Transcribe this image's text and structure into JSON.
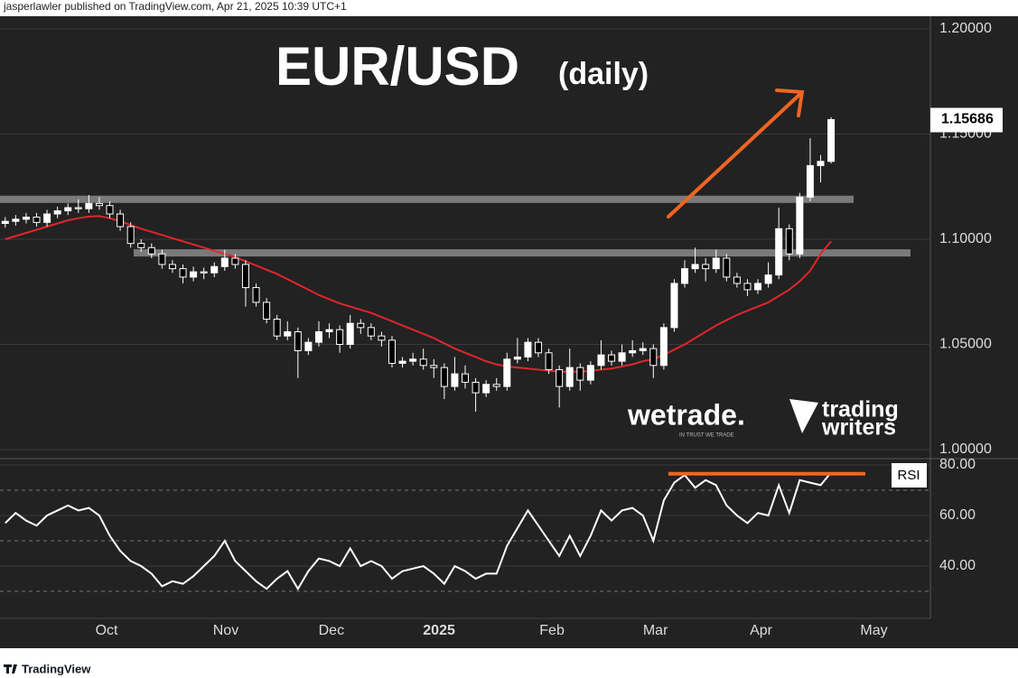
{
  "header": {
    "publisher": "jasperlawler published on TradingView.com, Apr 21, 2025 10:39 UTC+1"
  },
  "logos": {
    "wetrade": "wetrade.",
    "wetrade_tagline": "IN TRUST WE TRADE",
    "tw_line1": "trading",
    "tw_line2": "writers"
  },
  "footer": {
    "brand": "TradingView"
  },
  "chart_data": [
    {
      "type": "candlestick",
      "title": "EUR/USD",
      "subtitle": "(daily)",
      "open": [
        1.1075,
        1.1085,
        1.1095,
        1.1105,
        1.108,
        1.112,
        1.1135,
        1.115,
        1.1145,
        1.117,
        1.116,
        1.112,
        1.106,
        1.098,
        1.096,
        1.093,
        1.088,
        1.086,
        1.082,
        1.0845,
        1.084,
        1.087,
        1.091,
        1.088,
        1.077,
        1.07,
        1.062,
        1.054,
        1.056,
        1.047,
        1.051,
        1.056,
        1.057,
        1.05,
        1.06,
        1.058,
        1.054,
        1.052,
        1.041,
        1.042,
        1.043,
        1.04,
        1.039,
        1.03,
        1.036,
        1.032,
        1.027,
        1.031,
        1.03,
        1.043,
        1.044,
        1.051,
        1.046,
        1.038,
        1.03,
        1.039,
        1.033,
        1.04,
        1.045,
        1.042,
        1.046,
        1.047,
        1.048,
        1.04,
        1.058,
        1.079,
        1.086,
        1.088,
        1.086,
        1.091,
        1.082,
        1.079,
        1.076,
        1.079,
        1.083,
        1.105,
        1.093,
        1.12,
        1.135,
        1.137
      ],
      "high": [
        1.1105,
        1.1115,
        1.1125,
        1.1125,
        1.114,
        1.1155,
        1.117,
        1.119,
        1.121,
        1.12,
        1.118,
        1.114,
        1.108,
        1.1,
        1.098,
        1.095,
        1.09,
        1.088,
        1.087,
        1.0865,
        1.089,
        1.095,
        1.093,
        1.09,
        1.079,
        1.072,
        1.064,
        1.061,
        1.058,
        1.053,
        1.061,
        1.06,
        1.059,
        1.064,
        1.062,
        1.06,
        1.056,
        1.054,
        1.044,
        1.046,
        1.048,
        1.043,
        1.041,
        1.044,
        1.04,
        1.034,
        1.033,
        1.034,
        1.046,
        1.053,
        1.053,
        1.053,
        1.048,
        1.04,
        1.048,
        1.041,
        1.042,
        1.052,
        1.047,
        1.05,
        1.052,
        1.051,
        1.05,
        1.06,
        1.081,
        1.09,
        1.096,
        1.091,
        1.095,
        1.093,
        1.084,
        1.081,
        1.081,
        1.089,
        1.115,
        1.107,
        1.122,
        1.148,
        1.14,
        1.158
      ],
      "low": [
        1.1055,
        1.1065,
        1.1075,
        1.106,
        1.106,
        1.11,
        1.1115,
        1.1125,
        1.1125,
        1.114,
        1.11,
        1.104,
        1.096,
        1.094,
        1.091,
        1.086,
        1.084,
        1.079,
        1.08,
        1.081,
        1.082,
        1.085,
        1.086,
        1.068,
        1.068,
        1.06,
        1.052,
        1.052,
        1.034,
        1.045,
        1.049,
        1.053,
        1.046,
        1.048,
        1.055,
        1.052,
        1.049,
        1.039,
        1.039,
        1.04,
        1.038,
        1.034,
        1.024,
        1.028,
        1.029,
        1.018,
        1.025,
        1.028,
        1.028,
        1.041,
        1.042,
        1.044,
        1.036,
        1.02,
        1.028,
        1.028,
        1.031,
        1.038,
        1.04,
        1.04,
        1.044,
        1.045,
        1.034,
        1.038,
        1.056,
        1.077,
        1.084,
        1.08,
        1.084,
        1.08,
        1.077,
        1.073,
        1.074,
        1.077,
        1.081,
        1.09,
        1.091,
        1.118,
        1.127,
        1.136
      ],
      "close": [
        1.1085,
        1.1095,
        1.1105,
        1.108,
        1.112,
        1.1135,
        1.115,
        1.1145,
        1.117,
        1.116,
        1.112,
        1.106,
        1.098,
        1.096,
        1.093,
        1.088,
        1.086,
        1.082,
        1.0845,
        1.084,
        1.087,
        1.091,
        1.088,
        1.077,
        1.07,
        1.062,
        1.054,
        1.056,
        1.047,
        1.051,
        1.056,
        1.057,
        1.05,
        1.06,
        1.058,
        1.054,
        1.052,
        1.041,
        1.042,
        1.043,
        1.04,
        1.039,
        1.03,
        1.036,
        1.032,
        1.027,
        1.031,
        1.03,
        1.043,
        1.044,
        1.051,
        1.046,
        1.038,
        1.03,
        1.039,
        1.033,
        1.04,
        1.045,
        1.042,
        1.046,
        1.047,
        1.048,
        1.04,
        1.058,
        1.079,
        1.086,
        1.088,
        1.086,
        1.091,
        1.082,
        1.079,
        1.076,
        1.079,
        1.083,
        1.105,
        1.093,
        1.12,
        1.135,
        1.137,
        1.15686
      ],
      "up_color": "#ffffff",
      "down_color": "#000000",
      "moving_average": {
        "color": "#e0262b",
        "values": [
          1.1,
          1.1015,
          1.103,
          1.1045,
          1.106,
          1.1075,
          1.109,
          1.11,
          1.1108,
          1.111,
          1.11,
          1.1085,
          1.1068,
          1.105,
          1.1035,
          1.102,
          1.1005,
          1.099,
          1.0975,
          1.096,
          1.0945,
          1.093,
          1.0915,
          1.0895,
          1.0875,
          1.0855,
          1.0835,
          1.081,
          1.0785,
          1.076,
          1.0735,
          1.0715,
          1.0695,
          1.068,
          1.0665,
          1.065,
          1.063,
          1.061,
          1.059,
          1.057,
          1.055,
          1.053,
          1.0505,
          1.048,
          1.046,
          1.044,
          1.042,
          1.0405,
          1.0395,
          1.039,
          1.0385,
          1.038,
          1.0375,
          1.037,
          1.037,
          1.037,
          1.0375,
          1.038,
          1.0385,
          1.0395,
          1.0405,
          1.042,
          1.043,
          1.045,
          1.0475,
          1.05,
          1.053,
          1.056,
          1.059,
          1.0615,
          1.064,
          1.066,
          1.068,
          1.07,
          1.073,
          1.076,
          1.08,
          1.085,
          1.093,
          1.099
        ]
      },
      "levels": [
        1.119,
        1.0935
      ],
      "level_color": "#8a8a8a",
      "last_label": "1.15686",
      "xlim": [
        -0.5,
        88.5
      ],
      "ylim": [
        0.9957,
        1.206
      ],
      "yticks": [
        {
          "value": 1.0,
          "label": "1.00000"
        },
        {
          "value": 1.05,
          "label": "1.05000"
        },
        {
          "value": 1.1,
          "label": "1.10000"
        },
        {
          "value": 1.15,
          "label": "1.15000"
        },
        {
          "value": 1.2,
          "label": "1.20000"
        }
      ],
      "grid": true
    },
    {
      "type": "line",
      "label": "RSI",
      "color": "#ffffff",
      "values": [
        57,
        61,
        58,
        56,
        60,
        62,
        64,
        62,
        63,
        60,
        52,
        46,
        42,
        40,
        37,
        32,
        34,
        33,
        36,
        40,
        44,
        50,
        42,
        38,
        34,
        31,
        35,
        38,
        31,
        38,
        43,
        42,
        40,
        47,
        40,
        42,
        40,
        35,
        38,
        39,
        40,
        37,
        33,
        40,
        38,
        35,
        37,
        37,
        48,
        55,
        62,
        56,
        50,
        44,
        52,
        44,
        52,
        62,
        58,
        62,
        63,
        60,
        50,
        66,
        73,
        76,
        71,
        74,
        72,
        64,
        60,
        57,
        61,
        60,
        72,
        61,
        74,
        73,
        72,
        77
      ],
      "level": 76.5,
      "level_color": "#f26522",
      "bands": [
        30,
        50,
        70
      ],
      "xlim": [
        -0.5,
        88.5
      ],
      "ylim": [
        19.3,
        82.5
      ],
      "yticks": [
        {
          "value": 40,
          "label": "40.00"
        },
        {
          "value": 60,
          "label": "60.00"
        },
        {
          "value": 80,
          "label": "80.00"
        }
      ],
      "xticks": [
        {
          "value": 9.7,
          "label": "Oct"
        },
        {
          "value": 21.1,
          "label": "Nov"
        },
        {
          "value": 31.2,
          "label": "Dec"
        },
        {
          "value": 41.5,
          "label": "2025"
        },
        {
          "value": 52.3,
          "label": "Feb"
        },
        {
          "value": 62.2,
          "label": "Mar"
        },
        {
          "value": 72.3,
          "label": "Apr"
        },
        {
          "value": 83.1,
          "label": "May"
        }
      ],
      "grid": true
    }
  ]
}
